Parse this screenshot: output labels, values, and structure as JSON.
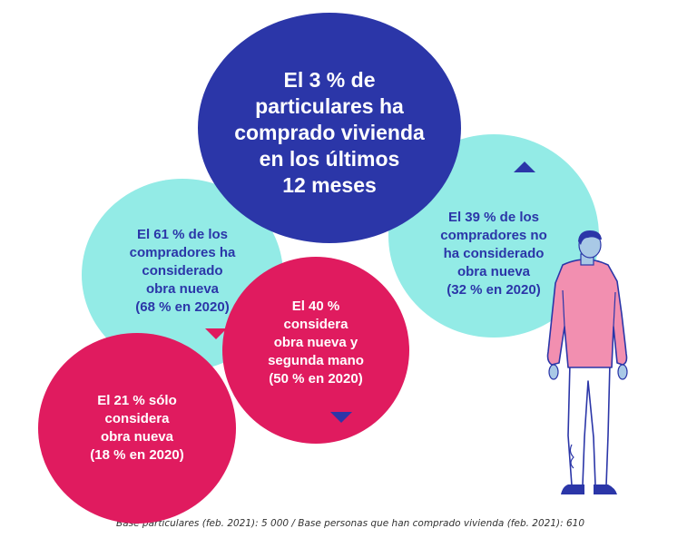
{
  "bubbles": {
    "main": {
      "text": "El 3 % de\nparticulares ha\ncomprado vivienda\nen los últimos\n12 meses",
      "color": "#2b36a8"
    },
    "considered_no": {
      "text": "El 39 % de los\ncompradores no\nha considerado\nobra nueva\n(32 % en 2020)",
      "color": "#93ebe6",
      "trend": "up"
    },
    "considered_yes": {
      "text": "El 61 % de los\ncompradores ha\nconsiderado\nobra nueva\n(68 % en 2020)",
      "color": "#93ebe6",
      "trend": "down"
    },
    "both": {
      "text": "El 40 %\nconsidera\nobra nueva y\nsegunda mano\n(50 % en 2020)",
      "color": "#e01b5f",
      "trend": "down"
    },
    "only_new": {
      "text": "El 21 % sólo\nconsidera\nobra nueva\n(18 % en 2020)",
      "color": "#e01b5f"
    }
  },
  "illustration": "person-standing-icon",
  "footnote": "Base particulares (feb. 2021): 5 000 / Base personas que han comprado vivienda (feb. 2021): 610"
}
